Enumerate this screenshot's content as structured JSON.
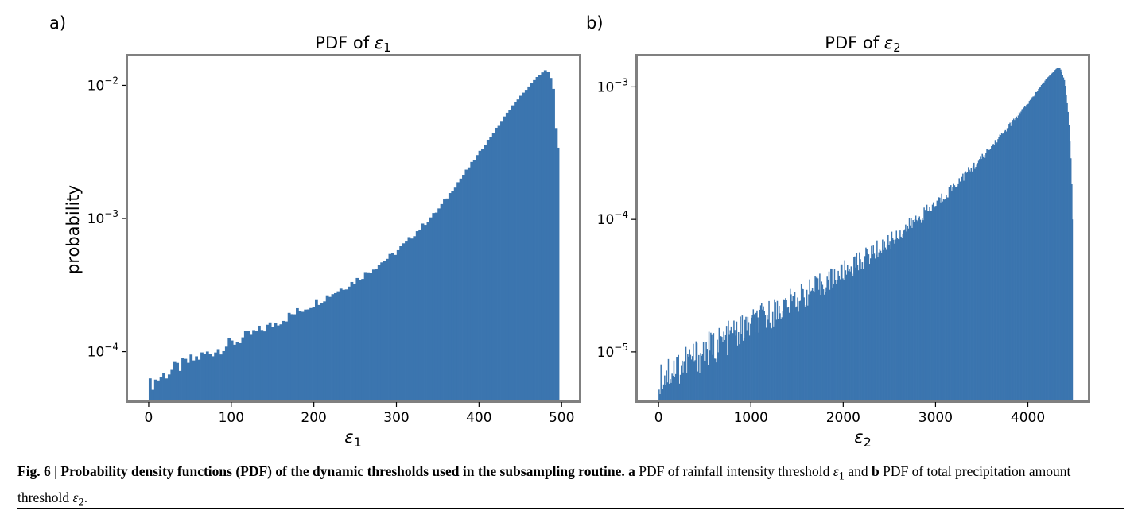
{
  "chart_data": [
    {
      "type": "bar",
      "panel_label": "a)",
      "title_text": "PDF of ",
      "title_symbol": "ε",
      "title_sub": "1",
      "xlabel_symbol": "ε",
      "xlabel_sub": "1",
      "ylabel": "probability",
      "yscale": "log",
      "xlim": [
        -25,
        521
      ],
      "ylim": [
        4.3e-05,
        0.0165
      ],
      "x_ticks": [
        0,
        100,
        200,
        300,
        400,
        500
      ],
      "x_tick_labels": [
        "0",
        "100",
        "200",
        "300",
        "400",
        "500"
      ],
      "y_ticks": [
        0.0001,
        0.001,
        0.01
      ],
      "y_tick_base": "10",
      "y_tick_exponents": [
        "−4",
        "−3",
        "−2"
      ],
      "color": "#3b75af",
      "bin_width": 3.3,
      "histogram_profile": {
        "x": [
          0,
          10,
          20,
          50,
          100,
          150,
          200,
          250,
          300,
          350,
          400,
          440,
          470,
          480,
          485,
          490,
          495,
          497
        ],
        "y": [
          5.5e-05,
          6.2e-05,
          6.8e-05,
          8.5e-05,
          0.000115,
          0.00016,
          0.00023,
          0.00034,
          0.00056,
          0.00115,
          0.0031,
          0.007,
          0.0115,
          0.013,
          0.0125,
          0.0095,
          0.0034,
          0.0034
        ]
      },
      "x_max": 497
    },
    {
      "type": "bar",
      "panel_label": "b)",
      "title_text": "PDF of ",
      "title_symbol": "ε",
      "title_sub": "2",
      "xlabel_symbol": "ε",
      "xlabel_sub": "2",
      "ylabel": "",
      "yscale": "log",
      "xlim": [
        -225,
        4650
      ],
      "ylim": [
        4.3e-06,
        0.0017
      ],
      "x_ticks": [
        0,
        1000,
        2000,
        3000,
        4000
      ],
      "x_tick_labels": [
        "0",
        "1000",
        "2000",
        "3000",
        "4000"
      ],
      "y_ticks": [
        1e-05,
        0.0001,
        0.001
      ],
      "y_tick_base": "10",
      "y_tick_exponents": [
        "−5",
        "−4",
        "−3"
      ],
      "color": "#3b75af",
      "bin_width": 10,
      "histogram_profile": {
        "x": [
          0,
          500,
          1000,
          1500,
          2000,
          2500,
          3000,
          3500,
          4000,
          4200,
          4320,
          4350,
          4400,
          4440,
          4470,
          4485
        ],
        "y": [
          6.5e-06,
          1e-05,
          1.6e-05,
          2.5e-05,
          4e-05,
          6.8e-05,
          0.00013,
          0.00029,
          0.00075,
          0.00115,
          0.0014,
          0.00138,
          0.0011,
          0.0006,
          0.00025,
          0.0001
        ]
      },
      "x_max": 4485
    }
  ],
  "caption": {
    "lead": "Fig. 6 | Probability density functions (PDF) of the dynamic thresholds used in the subsampling routine.",
    "part_a_letter": "a",
    "part_a_text": " PDF of rainfall intensity threshold ",
    "part_a_symbol": "ε",
    "part_a_sub": "1",
    "and_text": " and ",
    "part_b_letter": "b",
    "part_b_text": " PDF of total precipitation amount threshold ",
    "part_b_symbol": "ε",
    "part_b_sub": "2",
    "end_text": "."
  }
}
